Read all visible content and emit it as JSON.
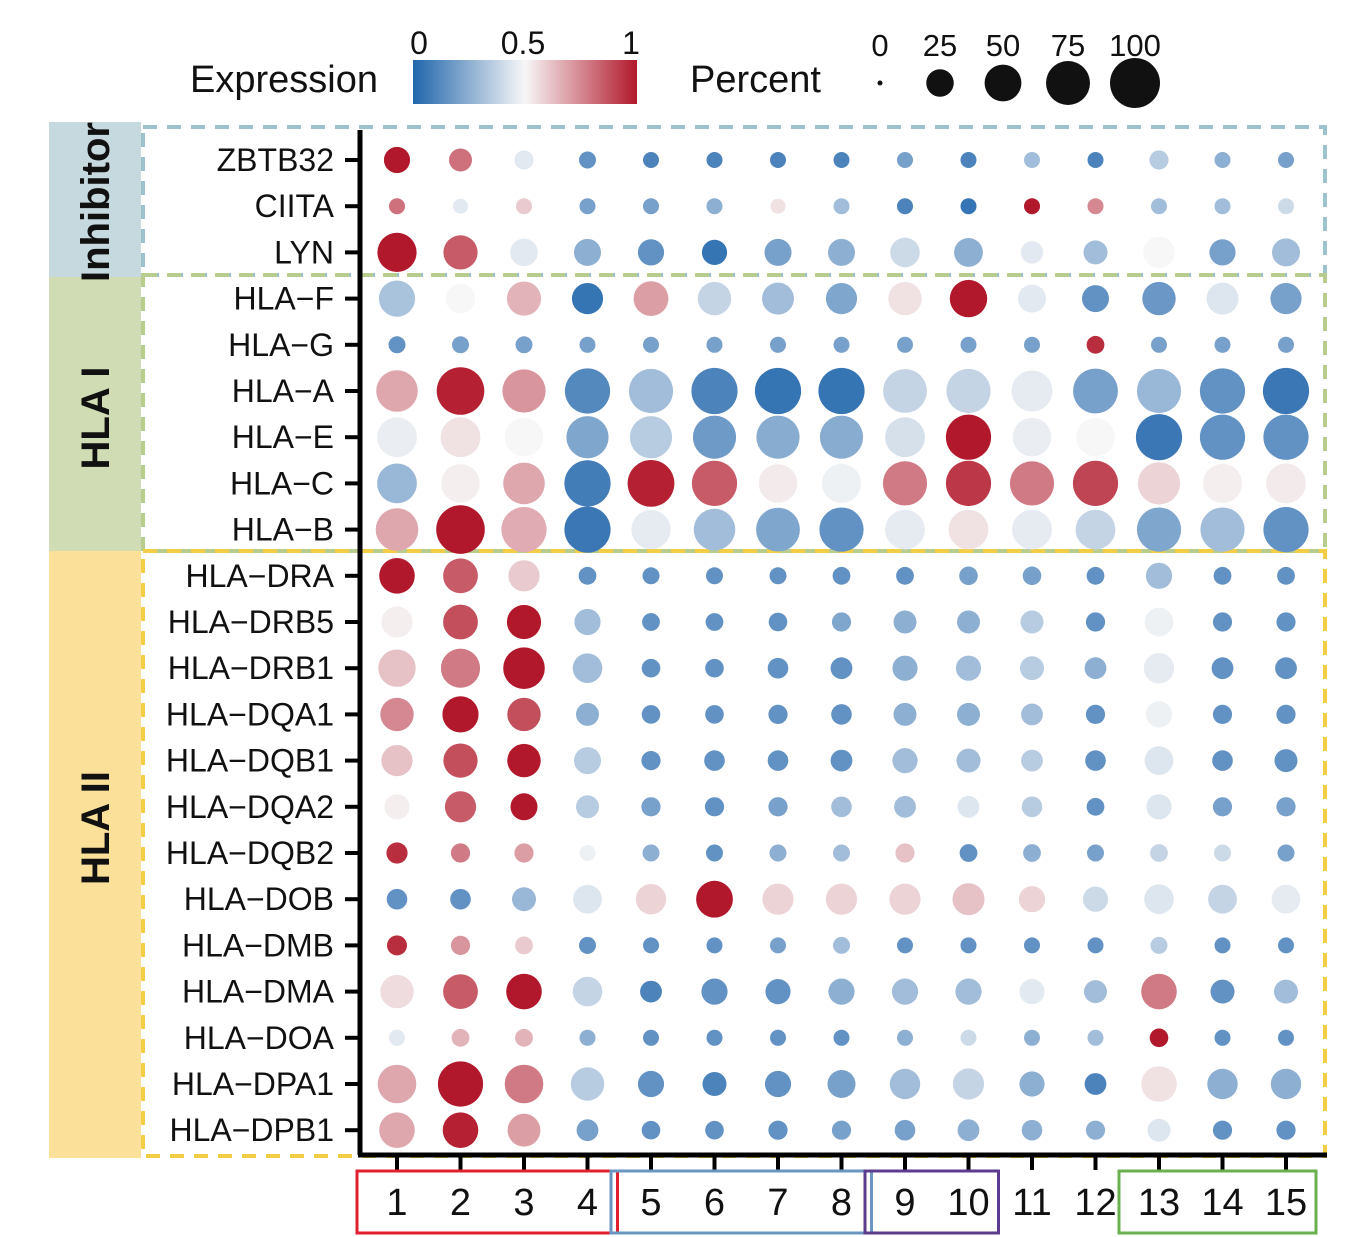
{
  "chart_data": {
    "type": "dotplot",
    "legend": {
      "expression_title": "Expression",
      "expression_ticks": [
        "0",
        "0.5",
        "1"
      ],
      "percent_title": "Percent",
      "percent_ticks": [
        "0",
        "25",
        "50",
        "75",
        "100"
      ],
      "percent_values": [
        0,
        25,
        50,
        75,
        100
      ]
    },
    "colors": {
      "low": "#2166ac",
      "mid": "#f7f7f7",
      "high": "#b2182b",
      "inhibitor_band": "#c5d9de",
      "hla1_band": "#cfdcb4",
      "hla2_band": "#fbe099",
      "inhibitor_box": "#9cc2cc",
      "hla1_box": "#b8cc8e",
      "hla2_box": "#f2cd46",
      "cluster_red": "#e0202e",
      "cluster_blue": "#6a96c0",
      "cluster_purple": "#5d3b8e",
      "cluster_green": "#6ab04c"
    },
    "groups": [
      {
        "name": "Inhibitor",
        "genes": [
          "ZBTB32",
          "CIITA",
          "LYN"
        ]
      },
      {
        "name": "HLA I",
        "genes": [
          "HLA−F",
          "HLA−G",
          "HLA−A",
          "HLA−E",
          "HLA−C",
          "HLA−B"
        ]
      },
      {
        "name": "HLA II",
        "genes": [
          "HLA−DRA",
          "HLA−DRB5",
          "HLA−DRB1",
          "HLA−DQA1",
          "HLA−DQB1",
          "HLA−DQA2",
          "HLA−DQB2",
          "HLA−DOB",
          "HLA−DMB",
          "HLA−DMA",
          "HLA−DOA",
          "HLA−DPA1",
          "HLA−DPB1"
        ]
      }
    ],
    "clusters": [
      "1",
      "2",
      "3",
      "4",
      "5",
      "6",
      "7",
      "8",
      "9",
      "10",
      "11",
      "12",
      "13",
      "14",
      "15"
    ],
    "cluster_boxes": [
      {
        "clusters": [
          "1",
          "2",
          "3",
          "4"
        ],
        "color": "cluster_red"
      },
      {
        "clusters": [
          "5",
          "6",
          "7",
          "8"
        ],
        "color": "cluster_blue"
      },
      {
        "clusters": [
          "9",
          "10"
        ],
        "color": "cluster_purple"
      },
      {
        "clusters": [
          "13",
          "14",
          "15"
        ],
        "color": "cluster_green"
      }
    ],
    "expression": [
      [
        1.0,
        0.8,
        0.45,
        0.15,
        0.1,
        0.1,
        0.1,
        0.1,
        0.2,
        0.1,
        0.3,
        0.1,
        0.35,
        0.25,
        0.2
      ],
      [
        0.8,
        0.45,
        0.6,
        0.2,
        0.2,
        0.25,
        0.55,
        0.3,
        0.1,
        0.05,
        1.0,
        0.75,
        0.3,
        0.3,
        0.4
      ],
      [
        1.0,
        0.85,
        0.45,
        0.25,
        0.15,
        0.05,
        0.2,
        0.25,
        0.4,
        0.25,
        0.45,
        0.3,
        0.5,
        0.2,
        0.3
      ],
      [
        0.32,
        0.5,
        0.65,
        0.05,
        0.7,
        0.38,
        0.3,
        0.22,
        0.55,
        1.0,
        0.45,
        0.15,
        0.17,
        0.44,
        0.2
      ],
      [
        0.15,
        0.2,
        0.2,
        0.2,
        0.2,
        0.2,
        0.2,
        0.2,
        0.2,
        0.2,
        0.2,
        0.95,
        0.2,
        0.2,
        0.2
      ],
      [
        0.68,
        0.98,
        0.72,
        0.12,
        0.3,
        0.1,
        0.05,
        0.05,
        0.38,
        0.38,
        0.46,
        0.2,
        0.28,
        0.15,
        0.06
      ],
      [
        0.47,
        0.55,
        0.5,
        0.22,
        0.35,
        0.18,
        0.24,
        0.24,
        0.42,
        1.0,
        0.47,
        0.5,
        0.06,
        0.15,
        0.15
      ],
      [
        0.28,
        0.52,
        0.68,
        0.08,
        0.98,
        0.85,
        0.53,
        0.48,
        0.78,
        0.93,
        0.78,
        0.9,
        0.58,
        0.52,
        0.53
      ],
      [
        0.68,
        1.0,
        0.67,
        0.06,
        0.46,
        0.3,
        0.22,
        0.15,
        0.46,
        0.55,
        0.46,
        0.38,
        0.22,
        0.3,
        0.15
      ],
      [
        1.0,
        0.85,
        0.6,
        0.15,
        0.15,
        0.15,
        0.15,
        0.15,
        0.15,
        0.2,
        0.2,
        0.15,
        0.3,
        0.15,
        0.15
      ],
      [
        0.52,
        0.88,
        1.0,
        0.3,
        0.15,
        0.15,
        0.15,
        0.22,
        0.25,
        0.25,
        0.35,
        0.15,
        0.48,
        0.15,
        0.15
      ],
      [
        0.62,
        0.78,
        1.0,
        0.3,
        0.15,
        0.15,
        0.15,
        0.15,
        0.25,
        0.3,
        0.35,
        0.25,
        0.46,
        0.15,
        0.15
      ],
      [
        0.75,
        1.0,
        0.88,
        0.25,
        0.15,
        0.15,
        0.15,
        0.15,
        0.25,
        0.25,
        0.3,
        0.15,
        0.48,
        0.15,
        0.15
      ],
      [
        0.62,
        0.88,
        1.0,
        0.35,
        0.15,
        0.15,
        0.15,
        0.15,
        0.3,
        0.3,
        0.35,
        0.15,
        0.44,
        0.15,
        0.15
      ],
      [
        0.52,
        0.85,
        1.0,
        0.35,
        0.2,
        0.15,
        0.2,
        0.3,
        0.3,
        0.44,
        0.35,
        0.15,
        0.44,
        0.2,
        0.2
      ],
      [
        0.95,
        0.78,
        0.7,
        0.48,
        0.25,
        0.15,
        0.25,
        0.3,
        0.62,
        0.15,
        0.25,
        0.2,
        0.38,
        0.4,
        0.2
      ],
      [
        0.15,
        0.15,
        0.28,
        0.44,
        0.58,
        1.0,
        0.58,
        0.58,
        0.58,
        0.62,
        0.58,
        0.4,
        0.44,
        0.38,
        0.46
      ],
      [
        0.95,
        0.72,
        0.6,
        0.15,
        0.15,
        0.15,
        0.2,
        0.3,
        0.15,
        0.15,
        0.15,
        0.15,
        0.35,
        0.15,
        0.15
      ],
      [
        0.56,
        0.85,
        1.0,
        0.38,
        0.1,
        0.15,
        0.15,
        0.25,
        0.3,
        0.3,
        0.45,
        0.3,
        0.78,
        0.15,
        0.3
      ],
      [
        0.45,
        0.65,
        0.65,
        0.25,
        0.15,
        0.15,
        0.15,
        0.15,
        0.25,
        0.4,
        0.25,
        0.3,
        1.0,
        0.15,
        0.15
      ],
      [
        0.68,
        1.0,
        0.78,
        0.35,
        0.15,
        0.1,
        0.15,
        0.2,
        0.3,
        0.38,
        0.25,
        0.1,
        0.55,
        0.25,
        0.25
      ],
      [
        0.68,
        0.98,
        0.7,
        0.2,
        0.15,
        0.15,
        0.15,
        0.2,
        0.2,
        0.25,
        0.25,
        0.25,
        0.44,
        0.15,
        0.15
      ]
    ],
    "percent": [
      [
        22,
        16,
        10,
        7,
        6,
        6,
        6,
        6,
        6,
        6,
        6,
        6,
        10,
        6,
        6
      ],
      [
        6,
        5,
        6,
        6,
        6,
        6,
        5,
        6,
        6,
        6,
        6,
        6,
        6,
        6,
        6
      ],
      [
        58,
        42,
        25,
        24,
        22,
        20,
        24,
        24,
        30,
        28,
        15,
        18,
        35,
        22,
        26
      ],
      [
        48,
        30,
        42,
        34,
        44,
        40,
        36,
        34,
        40,
        52,
        26,
        24,
        40,
        36,
        34
      ],
      [
        7,
        7,
        7,
        6,
        6,
        6,
        6,
        6,
        6,
        6,
        6,
        8,
        6,
        6,
        6
      ],
      [
        66,
        90,
        72,
        80,
        76,
        84,
        84,
        84,
        74,
        76,
        64,
        78,
        76,
        80,
        84
      ],
      [
        60,
        60,
        56,
        68,
        68,
        72,
        72,
        72,
        60,
        80,
        56,
        56,
        84,
        80,
        80
      ],
      [
        60,
        56,
        66,
        84,
        86,
        80,
        56,
        58,
        76,
        80,
        76,
        80,
        68,
        58,
        60
      ],
      [
        70,
        94,
        80,
        84,
        58,
        66,
        74,
        76,
        60,
        60,
        60,
        60,
        76,
        76,
        80
      ],
      [
        46,
        44,
        34,
        8,
        7,
        7,
        7,
        8,
        8,
        9,
        9,
        8,
        22,
        8,
        8
      ],
      [
        34,
        44,
        42,
        22,
        8,
        8,
        9,
        10,
        16,
        16,
        16,
        10,
        28,
        10,
        10
      ],
      [
        52,
        58,
        66,
        30,
        9,
        9,
        12,
        14,
        20,
        20,
        18,
        14,
        32,
        14,
        14
      ],
      [
        40,
        48,
        40,
        16,
        9,
        9,
        10,
        12,
        16,
        16,
        14,
        10,
        22,
        10,
        10
      ],
      [
        34,
        42,
        40,
        24,
        10,
        12,
        12,
        14,
        20,
        18,
        14,
        12,
        28,
        12,
        16
      ],
      [
        20,
        34,
        24,
        16,
        10,
        10,
        10,
        12,
        14,
        14,
        12,
        8,
        20,
        10,
        10
      ],
      [
        13,
        10,
        10,
        6,
        7,
        7,
        7,
        7,
        10,
        8,
        8,
        7,
        8,
        7,
        7
      ],
      [
        12,
        12,
        18,
        28,
        32,
        50,
        34,
        34,
        34,
        36,
        22,
        20,
        30,
        28,
        28
      ],
      [
        11,
        10,
        8,
        7,
        6,
        6,
        6,
        7,
        6,
        6,
        6,
        6,
        7,
        6,
        6
      ],
      [
        40,
        44,
        46,
        30,
        14,
        22,
        20,
        22,
        22,
        22,
        20,
        16,
        46,
        18,
        18
      ],
      [
        6,
        8,
        8,
        6,
        6,
        6,
        6,
        6,
        6,
        6,
        6,
        6,
        9,
        6,
        6
      ],
      [
        56,
        80,
        56,
        40,
        22,
        18,
        22,
        26,
        32,
        34,
        20,
        14,
        46,
        32,
        32
      ],
      [
        46,
        46,
        38,
        14,
        9,
        9,
        10,
        10,
        12,
        14,
        12,
        10,
        16,
        10,
        10
      ]
    ]
  }
}
